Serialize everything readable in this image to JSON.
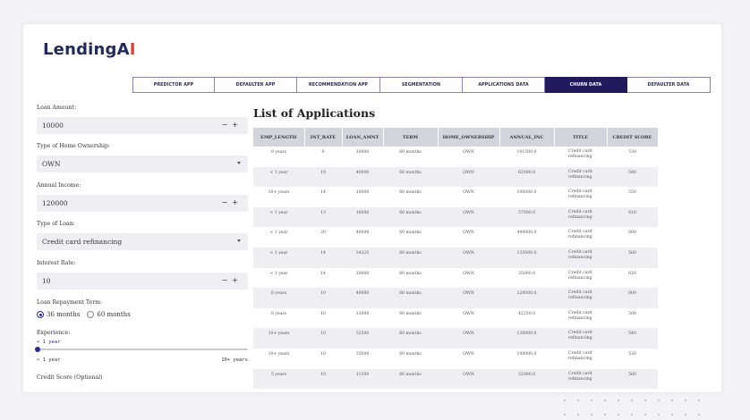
{
  "brand": {
    "name_main": "Lending",
    "name_a": "A",
    "name_i": "I"
  },
  "tabs": [
    {
      "label": "PREDICTOR APP",
      "active": false
    },
    {
      "label": "DEFAULTER APP",
      "active": false
    },
    {
      "label": "RECOMMENDATION APP",
      "active": false
    },
    {
      "label": "SEGMENTATION",
      "active": false
    },
    {
      "label": "APPLICATIONS DATA",
      "active": false
    },
    {
      "label": "CHURN DATA",
      "active": true
    },
    {
      "label": "DEFAULTER DATA",
      "active": false
    }
  ],
  "form": {
    "loan_amount": {
      "label": "Loan Amount:",
      "value": "10000",
      "minus": "−",
      "plus": "+"
    },
    "home_ownership": {
      "label": "Type of Home Ownership:",
      "value": "OWN"
    },
    "annual_income": {
      "label": "Annual Income:",
      "value": "120000",
      "minus": "−",
      "plus": "+"
    },
    "loan_type": {
      "label": "Type of Loan:",
      "value": "Credit card refinancing"
    },
    "interest_rate": {
      "label": "Interest Rate:",
      "value": "10",
      "minus": "−",
      "plus": "+"
    },
    "repayment_term": {
      "label": "Loan Repayment Term:",
      "option1": "36 months",
      "option2": "60 months",
      "selected": "36 months"
    },
    "experience": {
      "label": "Experience:",
      "current": "< 1 year",
      "min_label": "< 1 year",
      "max_label": "10+ years",
      "position": 0.0
    },
    "credit_score": {
      "label": "Credit Score (Optional)"
    }
  },
  "table": {
    "title": "List of Applications",
    "columns": [
      "EMP_LENGTH",
      "INT_RATE",
      "LOAN_AMNT",
      "TERM",
      "HOME_OWNERSHIP",
      "ANNUAL_INC",
      "TITLE",
      "CREDIT SCORE"
    ],
    "rows": [
      [
        "8 years",
        "9",
        "10000",
        "60 months",
        "OWN",
        "101500.0",
        "Credit card refinancing",
        "530"
      ],
      [
        "< 1 year",
        "10",
        "40000",
        "60 months",
        "OWN",
        "62000.0",
        "Credit card refinancing",
        "580"
      ],
      [
        "10+ years",
        "14",
        "10000",
        "60 months",
        "OWN",
        "100000.0",
        "Credit card refinancing",
        "550"
      ],
      [
        "< 1 year",
        "13",
        "16000",
        "60 months",
        "OWN",
        "57000.0",
        "Credit card refinancing",
        "610"
      ],
      [
        "< 1 year",
        "29",
        "40000",
        "60 months",
        "OWN",
        "490000.0",
        "Credit card refinancing",
        "600"
      ],
      [
        "< 1 year",
        "14",
        "34325",
        "60 months",
        "OWN",
        "135000.0",
        "Credit card refinancing",
        "580"
      ],
      [
        "< 1 year",
        "14",
        "10000",
        "60 months",
        "OWN",
        "35000.0",
        "Credit card refinancing",
        "620"
      ],
      [
        "8 years",
        "10",
        "40000",
        "60 months",
        "OWN",
        "120000.0",
        "Credit card refinancing",
        "600"
      ],
      [
        "8 years",
        "10",
        "13000",
        "60 months",
        "OWN",
        "42250.0",
        "Credit card refinancing",
        "590"
      ],
      [
        "10+ years",
        "10",
        "32500",
        "60 months",
        "OWN",
        "130000.0",
        "Credit card refinancing",
        "540"
      ],
      [
        "10+ years",
        "10",
        "35000",
        "60 months",
        "OWN",
        "100000.0",
        "Credit card refinancing",
        "530"
      ],
      [
        "5 years",
        "10",
        "11500",
        "60 months",
        "OWN",
        "32000.0",
        "Credit card refinancing",
        "580"
      ]
    ]
  }
}
